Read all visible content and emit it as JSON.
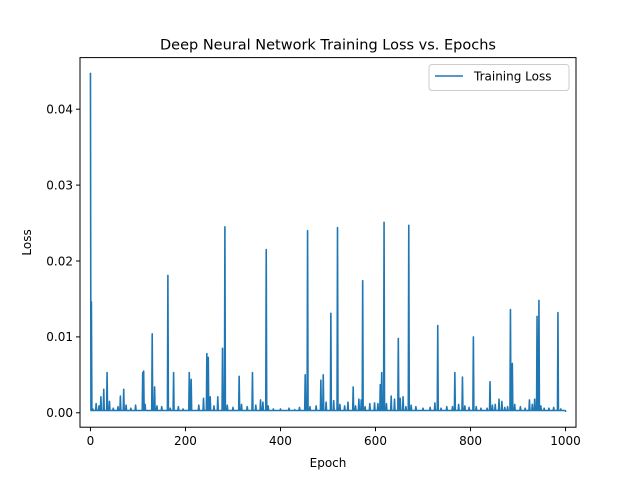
{
  "chart_data": {
    "type": "line",
    "title": "Deep Neural Network Training Loss vs. Epochs",
    "xlabel": "Epoch",
    "ylabel": "Loss",
    "xlim": [
      -22,
      1022
    ],
    "ylim": [
      -0.0019,
      0.0468
    ],
    "xticks": [
      0,
      200,
      400,
      600,
      800,
      1000
    ],
    "xtick_labels": [
      "0",
      "200",
      "400",
      "600",
      "800",
      "1000"
    ],
    "yticks": [
      0.0,
      0.01,
      0.02,
      0.03,
      0.04
    ],
    "ytick_labels": [
      "0.00",
      "0.01",
      "0.02",
      "0.03",
      "0.04"
    ],
    "grid": false,
    "legend_position": "top-right",
    "series": [
      {
        "name": "Training Loss",
        "color": "#1f77b4",
        "baseline": 0.0003,
        "spikes": [
          [
            0,
            0.0448
          ],
          [
            2,
            0.0146
          ],
          [
            5,
            0.0005
          ],
          [
            12,
            0.0012
          ],
          [
            18,
            0.0009
          ],
          [
            22,
            0.0021
          ],
          [
            28,
            0.0031
          ],
          [
            35,
            0.0053
          ],
          [
            40,
            0.0015
          ],
          [
            48,
            0.0006
          ],
          [
            58,
            0.0008
          ],
          [
            63,
            0.0022
          ],
          [
            70,
            0.0031
          ],
          [
            75,
            0.001
          ],
          [
            85,
            0.0006
          ],
          [
            95,
            0.001
          ],
          [
            110,
            0.0053
          ],
          [
            112,
            0.0055
          ],
          [
            115,
            0.0011
          ],
          [
            130,
            0.0104
          ],
          [
            135,
            0.0034
          ],
          [
            140,
            0.0009
          ],
          [
            150,
            0.0008
          ],
          [
            163,
            0.0181
          ],
          [
            168,
            0.0006
          ],
          [
            175,
            0.0053
          ],
          [
            185,
            0.0008
          ],
          [
            195,
            0.0005
          ],
          [
            208,
            0.0053
          ],
          [
            212,
            0.0044
          ],
          [
            228,
            0.001
          ],
          [
            238,
            0.0019
          ],
          [
            245,
            0.0078
          ],
          [
            248,
            0.0073
          ],
          [
            252,
            0.0021
          ],
          [
            260,
            0.0009
          ],
          [
            268,
            0.0021
          ],
          [
            278,
            0.0085
          ],
          [
            283,
            0.0245
          ],
          [
            288,
            0.001
          ],
          [
            300,
            0.0007
          ],
          [
            313,
            0.0048
          ],
          [
            318,
            0.0011
          ],
          [
            330,
            0.0008
          ],
          [
            341,
            0.0053
          ],
          [
            348,
            0.001
          ],
          [
            358,
            0.0017
          ],
          [
            363,
            0.0014
          ],
          [
            370,
            0.0215
          ],
          [
            374,
            0.0009
          ],
          [
            385,
            0.0005
          ],
          [
            400,
            0.0005
          ],
          [
            418,
            0.0006
          ],
          [
            430,
            0.0004
          ],
          [
            440,
            0.0007
          ],
          [
            452,
            0.005
          ],
          [
            457,
            0.024
          ],
          [
            462,
            0.0008
          ],
          [
            475,
            0.0009
          ],
          [
            485,
            0.0043
          ],
          [
            490,
            0.005
          ],
          [
            496,
            0.0014
          ],
          [
            506,
            0.0131
          ],
          [
            512,
            0.0016
          ],
          [
            520,
            0.0244
          ],
          [
            525,
            0.0011
          ],
          [
            535,
            0.0009
          ],
          [
            542,
            0.0014
          ],
          [
            553,
            0.0034
          ],
          [
            558,
            0.0009
          ],
          [
            565,
            0.0018
          ],
          [
            570,
            0.0017
          ],
          [
            573,
            0.0174
          ],
          [
            578,
            0.0008
          ],
          [
            588,
            0.0012
          ],
          [
            598,
            0.0013
          ],
          [
            605,
            0.0012
          ],
          [
            610,
            0.0037
          ],
          [
            613,
            0.0053
          ],
          [
            618,
            0.0251
          ],
          [
            623,
            0.0012
          ],
          [
            633,
            0.0022
          ],
          [
            640,
            0.0018
          ],
          [
            648,
            0.0098
          ],
          [
            652,
            0.0019
          ],
          [
            658,
            0.0021
          ],
          [
            664,
            0.0008
          ],
          [
            670,
            0.0247
          ],
          [
            675,
            0.001
          ],
          [
            685,
            0.0008
          ],
          [
            700,
            0.0006
          ],
          [
            715,
            0.0007
          ],
          [
            725,
            0.0013
          ],
          [
            731,
            0.0115
          ],
          [
            738,
            0.0006
          ],
          [
            750,
            0.0008
          ],
          [
            762,
            0.0008
          ],
          [
            767,
            0.0053
          ],
          [
            775,
            0.0011
          ],
          [
            783,
            0.0047
          ],
          [
            788,
            0.0009
          ],
          [
            797,
            0.0007
          ],
          [
            806,
            0.01
          ],
          [
            812,
            0.0008
          ],
          [
            822,
            0.0006
          ],
          [
            835,
            0.0006
          ],
          [
            841,
            0.0041
          ],
          [
            846,
            0.001
          ],
          [
            852,
            0.0011
          ],
          [
            860,
            0.0018
          ],
          [
            866,
            0.0015
          ],
          [
            872,
            0.0007
          ],
          [
            878,
            0.0008
          ],
          [
            884,
            0.0136
          ],
          [
            888,
            0.0065
          ],
          [
            893,
            0.0011
          ],
          [
            905,
            0.0008
          ],
          [
            915,
            0.0006
          ],
          [
            924,
            0.0017
          ],
          [
            930,
            0.0011
          ],
          [
            935,
            0.0018
          ],
          [
            940,
            0.0127
          ],
          [
            944,
            0.0148
          ],
          [
            948,
            0.0009
          ],
          [
            955,
            0.0006
          ],
          [
            965,
            0.0006
          ],
          [
            975,
            0.0007
          ],
          [
            984,
            0.0132
          ],
          [
            990,
            0.0005
          ],
          [
            995,
            0.0003
          ],
          [
            1000,
            0.0002
          ]
        ]
      }
    ]
  }
}
